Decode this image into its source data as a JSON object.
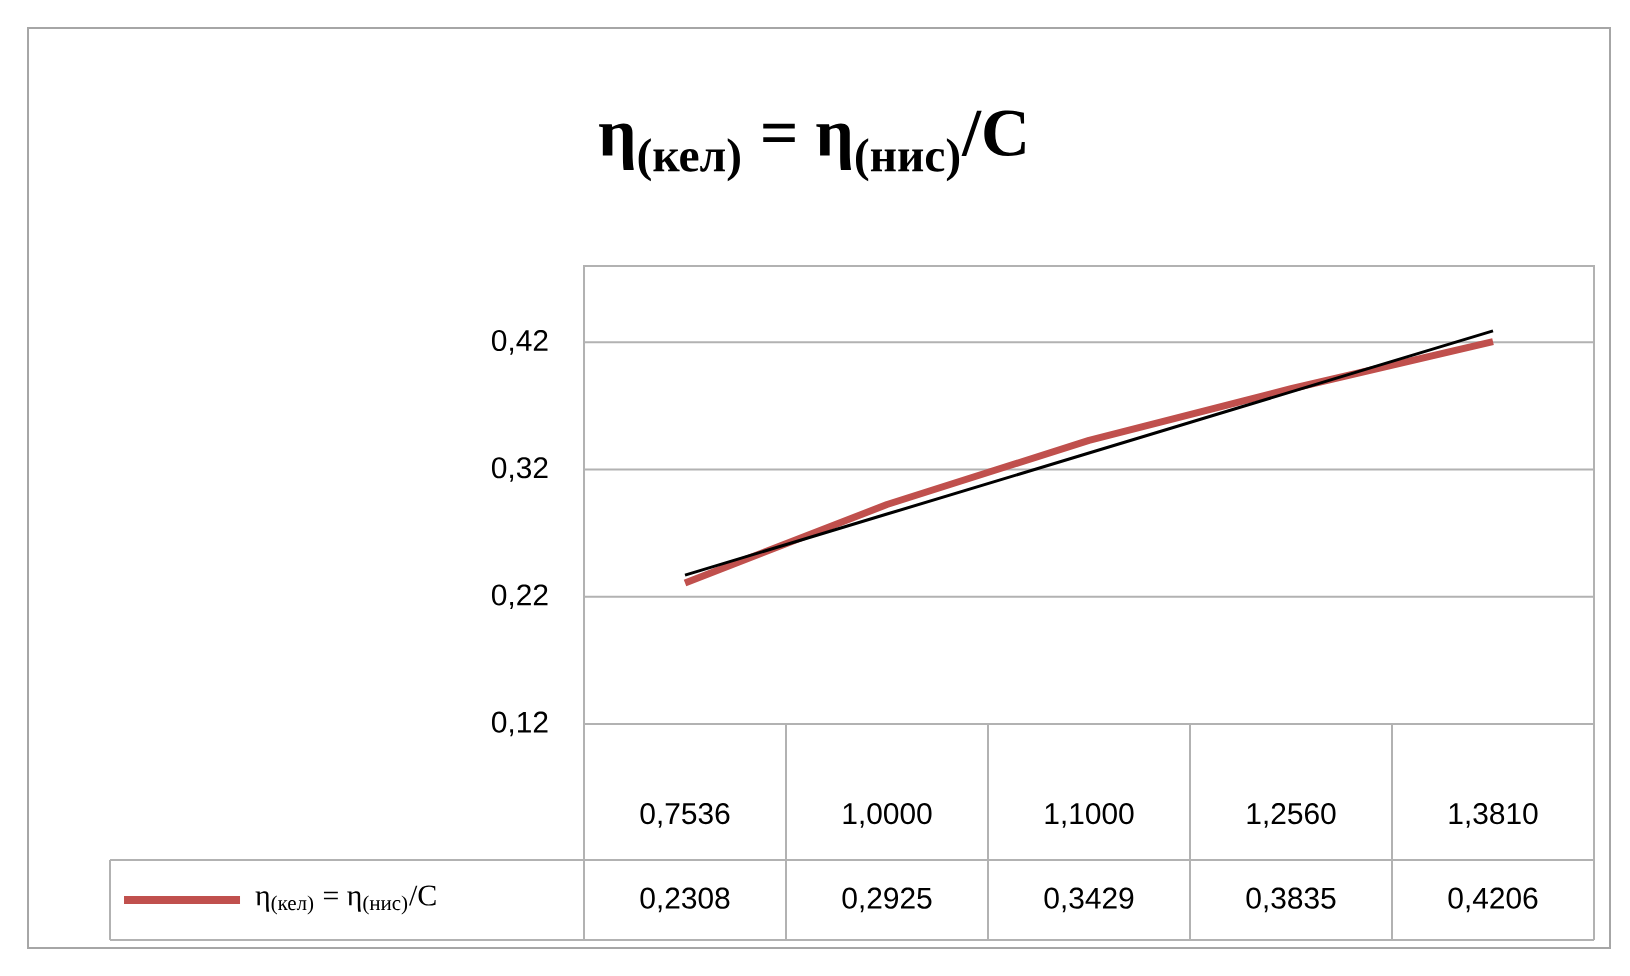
{
  "chart_data": {
    "type": "line",
    "title": "η$_{(кел)}$ = η$_{(нис)}$/C",
    "categories": [
      "0,7536",
      "1,0000",
      "1,1000",
      "1,2560",
      "1,3810"
    ],
    "series": [
      {
        "name": "η$_{(кел)}$ = η$_{(нис)}$/C",
        "color": "#c0504d",
        "values": [
          0.2308,
          0.2925,
          0.3429,
          0.3835,
          0.4206
        ],
        "value_labels": [
          "0,2308",
          "0,2925",
          "0,3429",
          "0,3835",
          "0,4206"
        ]
      },
      {
        "color": "#000000",
        "values": [
          0.237,
          0.285,
          0.333,
          0.381,
          0.429
        ]
      }
    ],
    "ylim": [
      0.12,
      0.48
    ],
    "yticks": [
      {
        "value": 0.12,
        "label": "0,12"
      },
      {
        "value": 0.22,
        "label": "0,22"
      },
      {
        "value": 0.32,
        "label": "0,32"
      },
      {
        "value": 0.42,
        "label": "0,42"
      }
    ],
    "grid": "y",
    "legend": "bottom"
  }
}
